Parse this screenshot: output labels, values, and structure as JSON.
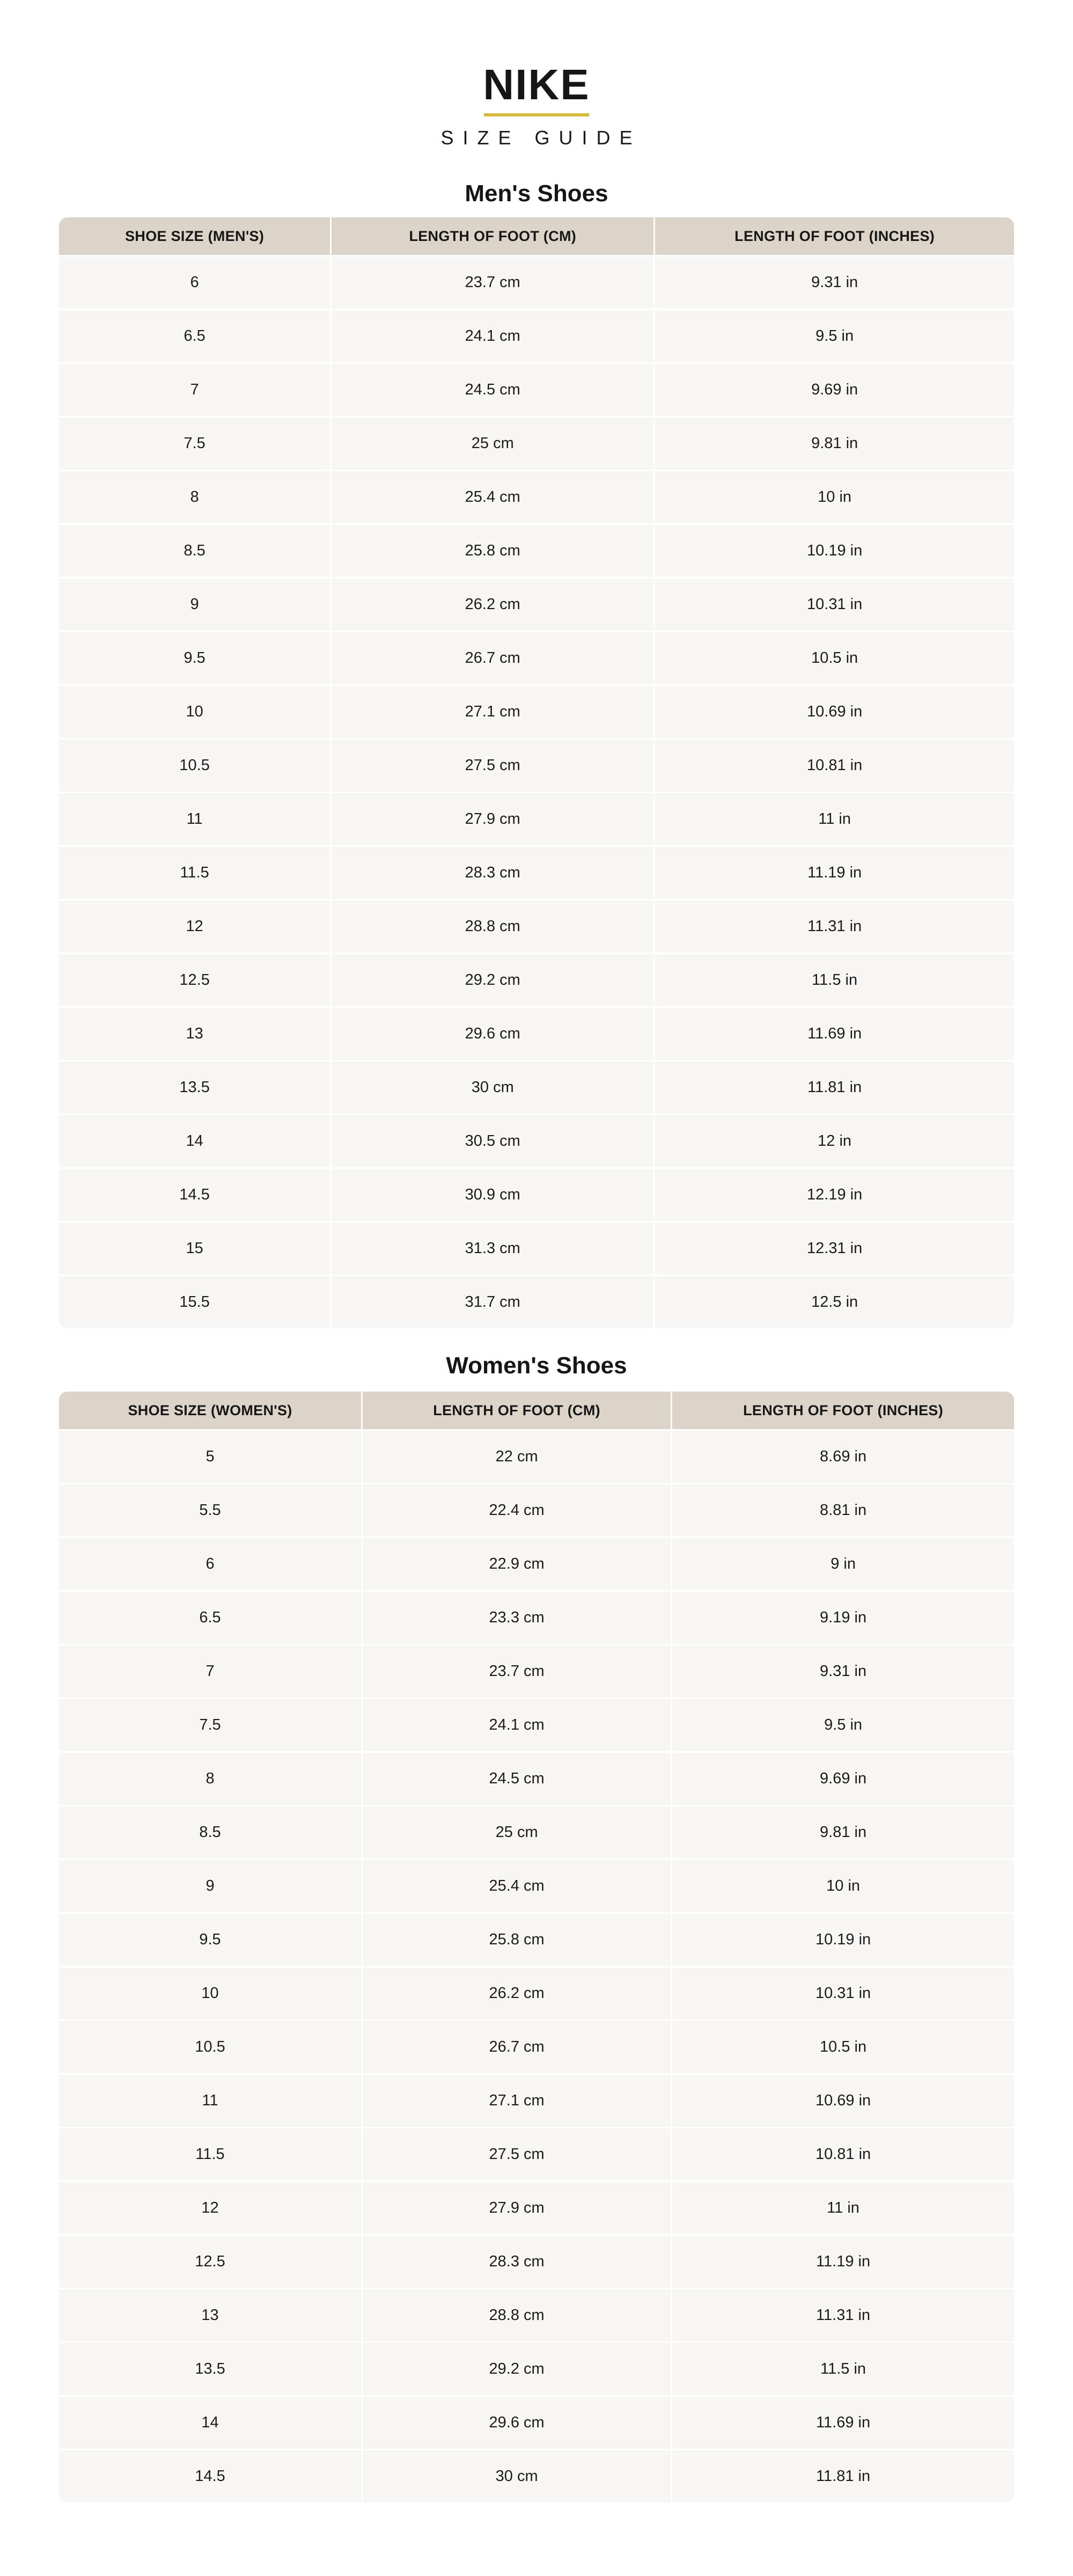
{
  "brand": {
    "logo": "NIKE",
    "subtitle": "SIZE GUIDE"
  },
  "colors": {
    "accent_gold": "#d6ba3e",
    "table_header_bg": "#dcd4c9",
    "row_bg": "#f7f6f4",
    "text": "#111111",
    "page_bg": "#ffffff"
  },
  "tables": [
    {
      "title": "Men's Shoes",
      "columns": [
        "SHOE SIZE (MEN'S)",
        "LENGTH OF FOOT (CM)",
        "LENGTH OF FOOT (INCHES)"
      ],
      "rows": [
        [
          "6",
          "23.7 cm",
          "9.31 in"
        ],
        [
          "6.5",
          "24.1 cm",
          "9.5 in"
        ],
        [
          "7",
          "24.5 cm",
          "9.69 in"
        ],
        [
          "7.5",
          "25 cm",
          "9.81 in"
        ],
        [
          "8",
          "25.4 cm",
          "10 in"
        ],
        [
          "8.5",
          "25.8 cm",
          "10.19 in"
        ],
        [
          "9",
          "26.2 cm",
          "10.31 in"
        ],
        [
          "9.5",
          "26.7 cm",
          "10.5 in"
        ],
        [
          "10",
          "27.1 cm",
          "10.69 in"
        ],
        [
          "10.5",
          "27.5 cm",
          "10.81 in"
        ],
        [
          "11",
          "27.9 cm",
          "11 in"
        ],
        [
          "11.5",
          "28.3 cm",
          "11.19 in"
        ],
        [
          "12",
          "28.8 cm",
          "11.31 in"
        ],
        [
          "12.5",
          "29.2 cm",
          "11.5 in"
        ],
        [
          "13",
          "29.6 cm",
          "11.69 in"
        ],
        [
          "13.5",
          "30 cm",
          "11.81 in"
        ],
        [
          "14",
          "30.5 cm",
          "12 in"
        ],
        [
          "14.5",
          "30.9 cm",
          "12.19 in"
        ],
        [
          "15",
          "31.3 cm",
          "12.31 in"
        ],
        [
          "15.5",
          "31.7 cm",
          "12.5 in"
        ]
      ]
    },
    {
      "title": "Women's Shoes",
      "columns": [
        "SHOE SIZE (WOMEN'S)",
        "LENGTH OF FOOT (CM)",
        "LENGTH OF FOOT (INCHES)"
      ],
      "rows": [
        [
          "5",
          "22 cm",
          "8.69 in"
        ],
        [
          "5.5",
          "22.4 cm",
          "8.81 in"
        ],
        [
          "6",
          "22.9 cm",
          "9 in"
        ],
        [
          "6.5",
          "23.3 cm",
          "9.19 in"
        ],
        [
          "7",
          "23.7 cm",
          "9.31 in"
        ],
        [
          "7.5",
          "24.1 cm",
          "9.5 in"
        ],
        [
          "8",
          "24.5 cm",
          "9.69 in"
        ],
        [
          "8.5",
          "25 cm",
          "9.81 in"
        ],
        [
          "9",
          "25.4 cm",
          "10 in"
        ],
        [
          "9.5",
          "25.8 cm",
          "10.19 in"
        ],
        [
          "10",
          "26.2 cm",
          "10.31 in"
        ],
        [
          "10.5",
          "26.7 cm",
          "10.5 in"
        ],
        [
          "11",
          "27.1 cm",
          "10.69 in"
        ],
        [
          "11.5",
          "27.5 cm",
          "10.81 in"
        ],
        [
          "12",
          "27.9 cm",
          "11 in"
        ],
        [
          "12.5",
          "28.3 cm",
          "11.19 in"
        ],
        [
          "13",
          "28.8 cm",
          "11.31 in"
        ],
        [
          "13.5",
          "29.2 cm",
          "11.5 in"
        ],
        [
          "14",
          "29.6 cm",
          "11.69 in"
        ],
        [
          "14.5",
          "30 cm",
          "11.81 in"
        ]
      ]
    }
  ]
}
